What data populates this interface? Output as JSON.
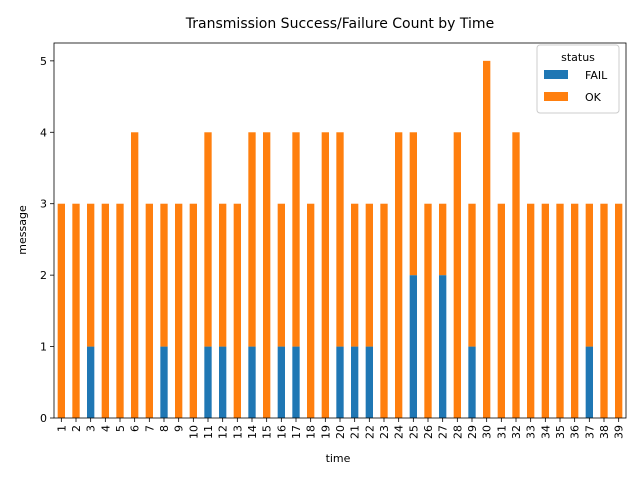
{
  "chart_data": {
    "type": "bar",
    "stacked": true,
    "title": "Transmission Success/Failure Count by Time",
    "xlabel": "time",
    "ylabel": "message",
    "ylim": [
      0,
      5.25
    ],
    "yticks": [
      0,
      1,
      2,
      3,
      4,
      5
    ],
    "grid": false,
    "legend": {
      "title": "status",
      "placement": "top-right"
    },
    "categories": [
      "1",
      "2",
      "3",
      "4",
      "5",
      "6",
      "7",
      "8",
      "9",
      "10",
      "11",
      "12",
      "13",
      "14",
      "15",
      "16",
      "17",
      "18",
      "19",
      "20",
      "21",
      "22",
      "23",
      "24",
      "25",
      "26",
      "27",
      "28",
      "29",
      "30",
      "31",
      "32",
      "33",
      "34",
      "35",
      "36",
      "37",
      "38",
      "39"
    ],
    "series": [
      {
        "name": "FAIL",
        "color": "#1f77b4",
        "values": [
          0,
          0,
          1,
          0,
          0,
          0,
          0,
          1,
          0,
          0,
          1,
          1,
          0,
          1,
          0,
          1,
          1,
          0,
          0,
          1,
          1,
          1,
          0,
          0,
          2,
          0,
          2,
          0,
          1,
          0,
          0,
          0,
          0,
          0,
          0,
          0,
          1,
          0,
          0
        ]
      },
      {
        "name": "OK",
        "color": "#ff7f0e",
        "values": [
          3,
          3,
          2,
          3,
          3,
          4,
          3,
          2,
          3,
          3,
          3,
          2,
          3,
          3,
          4,
          2,
          3,
          3,
          4,
          3,
          2,
          2,
          3,
          4,
          2,
          3,
          1,
          4,
          2,
          5,
          3,
          4,
          3,
          3,
          3,
          3,
          2,
          3,
          3
        ]
      }
    ]
  }
}
